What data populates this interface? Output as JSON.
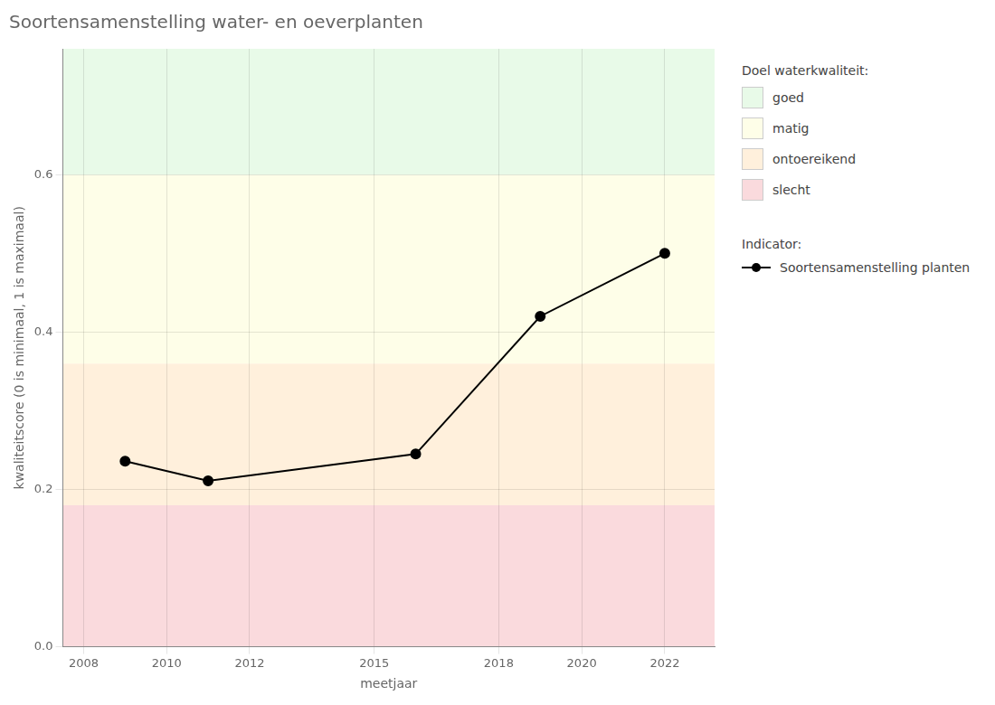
{
  "chart_data": {
    "type": "line",
    "title": "Soortensamenstelling water- en oeverplanten",
    "xlabel": "meetjaar",
    "ylabel": "kwaliteitscore (0 is minimaal, 1 is maximaal)",
    "x": [
      2009,
      2011,
      2016,
      2019,
      2022
    ],
    "series": [
      {
        "name": "Soortensamenstelling planten",
        "color": "#000000",
        "marker": "circle",
        "values": [
          0.236,
          0.211,
          0.245,
          0.42,
          0.5
        ]
      }
    ],
    "xlim": [
      2007.5,
      2023.2
    ],
    "ylim": [
      0.0,
      0.76
    ],
    "xticks": [
      2008,
      2010,
      2012,
      2015,
      2018,
      2020,
      2022
    ],
    "yticks": [
      {
        "value": 0.0,
        "label": "0.0"
      },
      0.2,
      0.4,
      0.6
    ],
    "bands": [
      {
        "ymin": 0.0,
        "ymax": 0.18,
        "color": "#FADADD",
        "label": "slecht"
      },
      {
        "ymin": 0.18,
        "ymax": 0.36,
        "color": "#FFF0DC",
        "label": "ontoereikend"
      },
      {
        "ymin": 0.36,
        "ymax": 0.6,
        "color": "#FEFEE8",
        "label": "matig"
      },
      {
        "ymin": 0.6,
        "ymax": 0.76,
        "color": "#E8FAE8",
        "label": "goed"
      }
    ],
    "bands_legend_title": "Doel waterkwaliteit:",
    "series_legend_title": "Indicator:",
    "grid": true,
    "legend": "right"
  }
}
